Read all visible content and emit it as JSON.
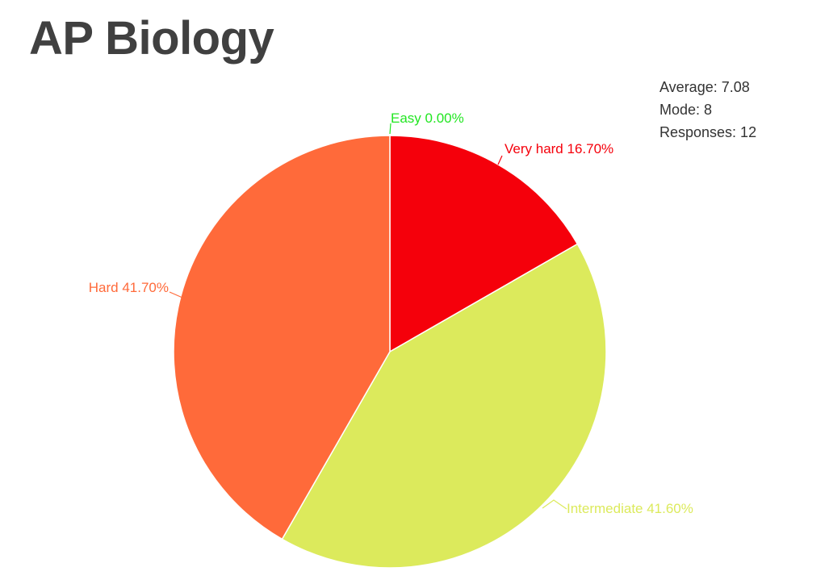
{
  "chart_data": {
    "type": "pie",
    "title": "AP Biology",
    "slices": [
      {
        "label": "Easy",
        "value": 0.0,
        "display": "0.00%",
        "color": "#22e622"
      },
      {
        "label": "Very hard",
        "value": 16.7,
        "display": "16.70%",
        "color": "#f5000b"
      },
      {
        "label": "Intermediate",
        "value": 41.6,
        "display": "41.60%",
        "color": "#dcea5c"
      },
      {
        "label": "Hard",
        "value": 41.7,
        "display": "41.70%",
        "color": "#ff6a3a"
      }
    ]
  },
  "stats": {
    "average": "Average: 7.08",
    "mode": "Mode: 8",
    "responses": "Responses: 12"
  }
}
